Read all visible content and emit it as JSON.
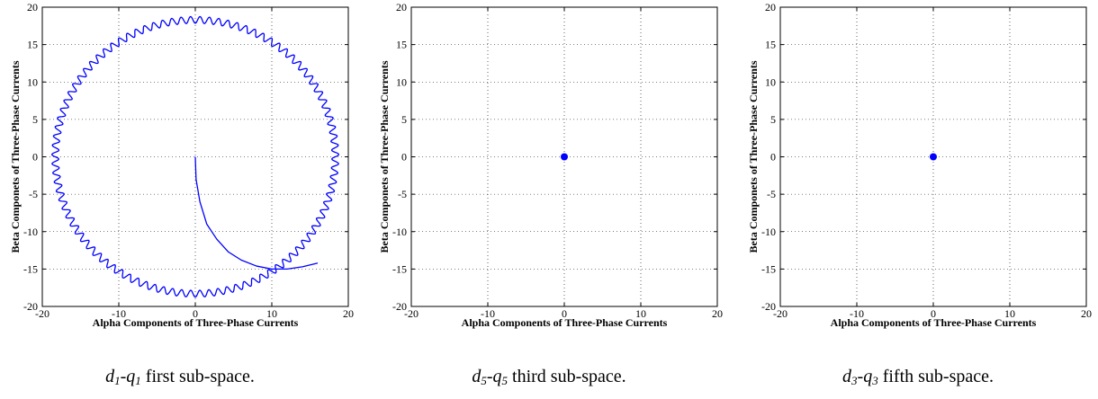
{
  "chart_data": [
    {
      "type": "line",
      "xlabel": "Alpha Components of Three-Phase Currents",
      "ylabel": "Beta Componets of Three-Phase Currents",
      "xlim": [
        -20,
        20
      ],
      "ylim": [
        -20,
        20
      ],
      "ticks": [
        "-20",
        "-15",
        "-10",
        "-5",
        "0",
        "5",
        "10",
        "15",
        "20"
      ],
      "xticks": [
        "-20",
        "-10",
        "0",
        "10",
        "20"
      ],
      "grid": true,
      "color": "#0000ff",
      "series": [
        {
          "shape": "circle-with-ripple",
          "radius": 18.3,
          "ripple_amplitude": 0.45,
          "ripple_cycles": 95
        },
        {
          "shape": "transient-arc",
          "x": [
            0,
            0.1,
            0.6,
            1.5,
            2.8,
            4.3,
            6.0,
            8.0,
            10.0,
            12.0,
            14.0,
            16.0
          ],
          "y": [
            0,
            -3,
            -6,
            -9,
            -11,
            -12.7,
            -13.8,
            -14.6,
            -15.0,
            -15.0,
            -14.7,
            -14.2
          ]
        }
      ],
      "caption": {
        "d": "d",
        "d_sub": "1",
        "sep": "-",
        "q": "q",
        "q_sub": "1",
        "text": " first sub-space."
      }
    },
    {
      "type": "scatter",
      "xlabel": "Alpha Components of Three-Phase Currents",
      "ylabel": "Beta Componets of Three-Phase Currents",
      "xlim": [
        -20,
        20
      ],
      "ylim": [
        -20,
        20
      ],
      "ticks": [
        "-20",
        "-15",
        "-10",
        "-5",
        "0",
        "5",
        "10",
        "15",
        "20"
      ],
      "xticks": [
        "-20",
        "-10",
        "0",
        "10",
        "20"
      ],
      "grid": true,
      "color": "#0000ff",
      "points": [
        [
          0,
          0
        ]
      ],
      "caption": {
        "d": "d",
        "d_sub": "5",
        "sep": "-",
        "q": "q",
        "q_sub": "5",
        "text": " third sub-space."
      }
    },
    {
      "type": "scatter",
      "xlabel": "Alpha Components of Three-Phase Currents",
      "ylabel": "Beta Componets of Three-Phase Currents",
      "xlim": [
        -20,
        20
      ],
      "ylim": [
        -20,
        20
      ],
      "ticks": [
        "-20",
        "-15",
        "-10",
        "-5",
        "0",
        "5",
        "10",
        "15",
        "20"
      ],
      "xticks": [
        "-20",
        "-10",
        "0",
        "10",
        "20"
      ],
      "grid": true,
      "color": "#0000ff",
      "points": [
        [
          0,
          0
        ]
      ],
      "caption": {
        "d": "d",
        "d_sub": "3",
        "sep": "-",
        "q": "q",
        "q_sub": "3",
        "text": " fifth sub-space."
      }
    }
  ]
}
